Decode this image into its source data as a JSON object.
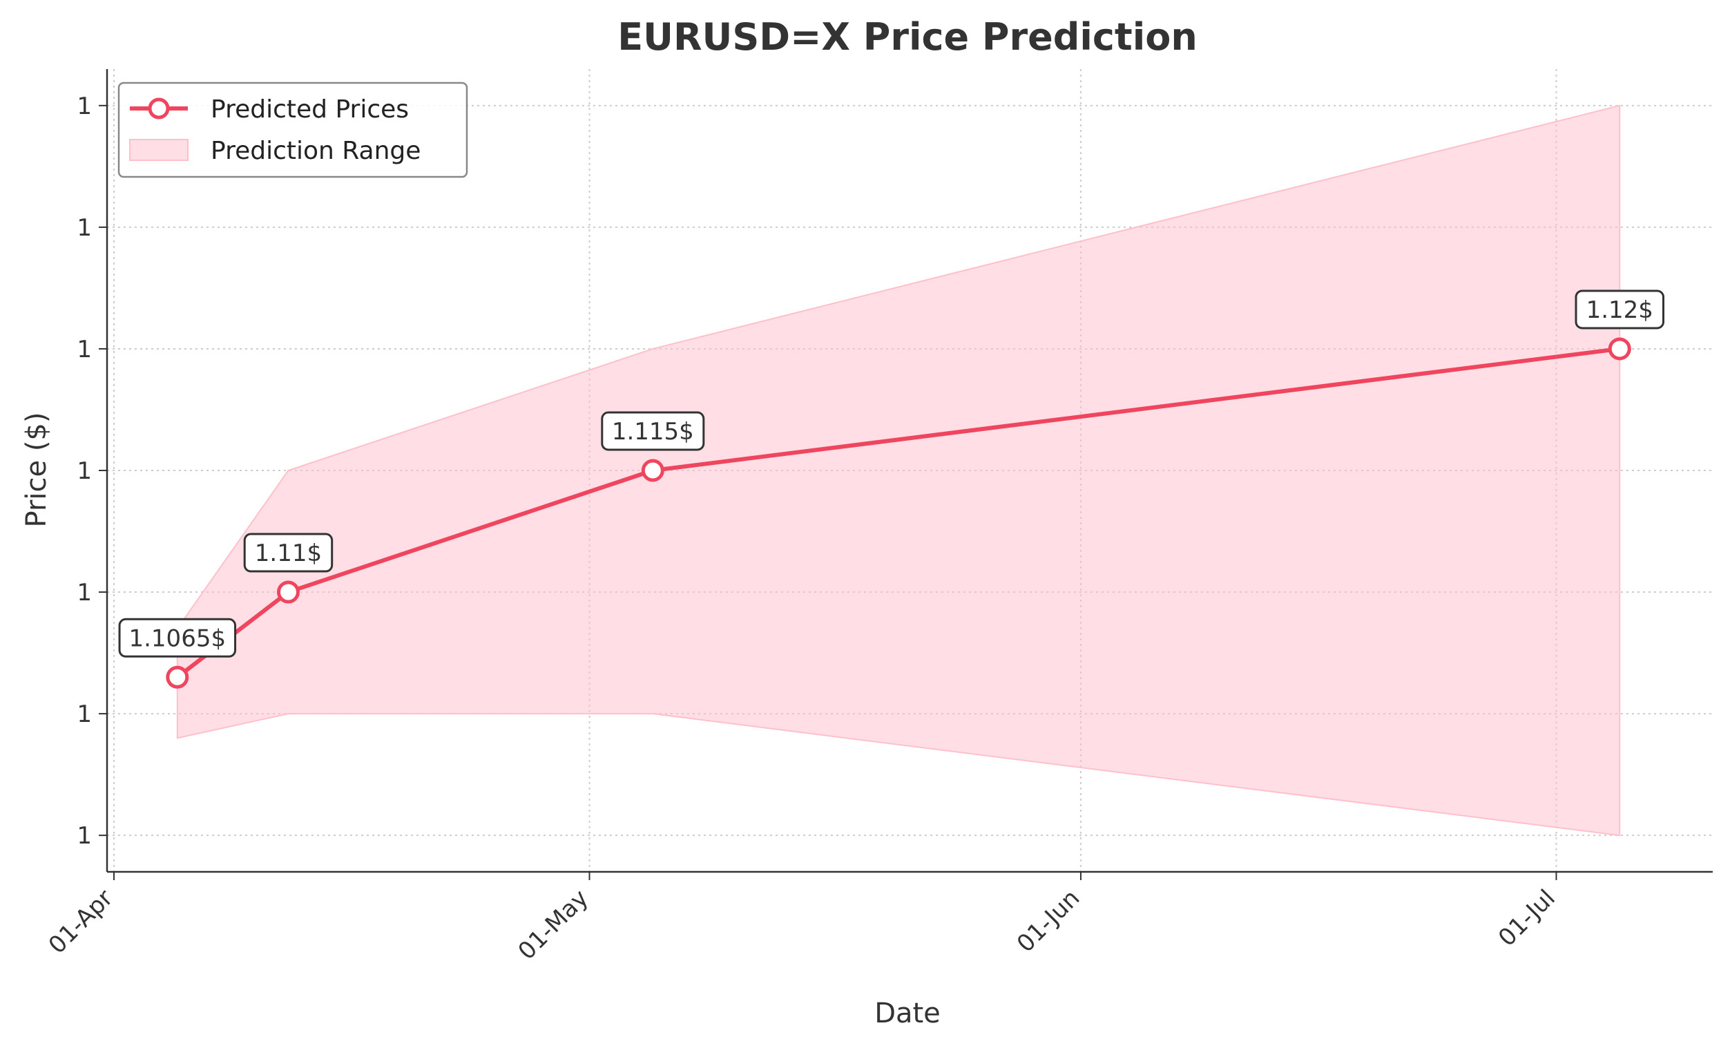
{
  "chart_data": {
    "type": "line",
    "title": "EURUSD=X Price Prediction",
    "xlabel": "Date",
    "ylabel": "Price ($)",
    "x_ticks": [
      "01-Apr",
      "01-May",
      "01-Jun",
      "01-Jul"
    ],
    "y_tick_labels": [
      "1",
      "1",
      "1",
      "1",
      "1",
      "1",
      "1"
    ],
    "y_tick_values": [
      1.1,
      1.105,
      1.11,
      1.115,
      1.12,
      1.125,
      1.13
    ],
    "grid": true,
    "legend_position": "top-left",
    "series": [
      {
        "name": "Predicted Prices",
        "color": "#f0455f",
        "x": [
          "2024-04-05",
          "2024-04-12",
          "2024-05-05",
          "2024-07-05"
        ],
        "y": [
          1.1065,
          1.11,
          1.115,
          1.12
        ],
        "labels": [
          "1.1065$",
          "1.11$",
          "1.115$",
          "1.12$"
        ]
      }
    ],
    "range": {
      "name": "Prediction Range",
      "color": "#ffc0cb",
      "x": [
        "2024-04-05",
        "2024-04-12",
        "2024-05-05",
        "2024-07-05"
      ],
      "upper": [
        1.1085,
        1.115,
        1.12,
        1.13
      ],
      "lower": [
        1.104,
        1.105,
        1.105,
        1.1
      ]
    },
    "x_range": [
      "2024-04-01",
      "2024-07-10"
    ],
    "y_range": [
      1.0985,
      1.1315
    ]
  }
}
